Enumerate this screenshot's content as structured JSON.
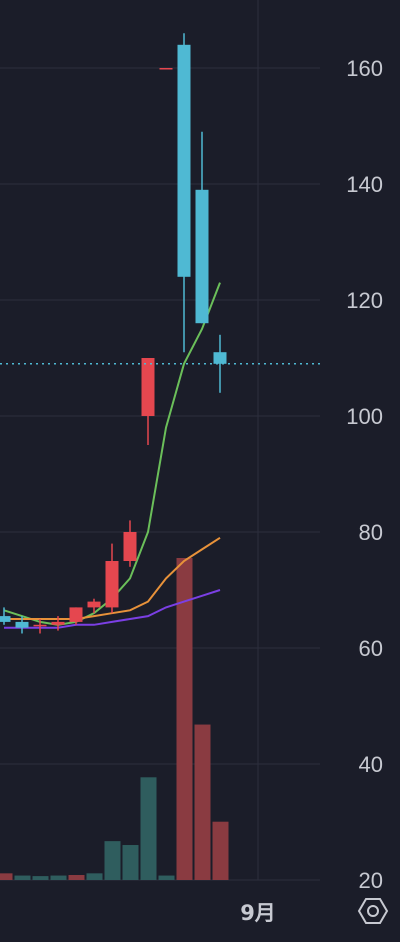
{
  "chart_data": {
    "type": "candlestick",
    "y_axis": {
      "ticks": [
        20,
        40,
        60,
        80,
        100,
        120,
        140,
        160
      ],
      "ylim": [
        20,
        171
      ],
      "side": "right",
      "grid": true
    },
    "x_axis": {
      "labels": [
        "9月"
      ]
    },
    "price_line": {
      "value": 109,
      "style": "dotted",
      "color": "#4fb9d3"
    },
    "colors": {
      "up": "#e5474f",
      "down": "#4fb9d3",
      "volume_up": "#8a3b41",
      "volume_down": "#2f5d5e",
      "ma_short": "#6bbf5a",
      "ma_mid": "#e8923a",
      "ma_long": "#7b3fe4",
      "grid": "#2c2f3d",
      "background": "#1b1d29"
    },
    "candles": [
      {
        "open": 65.5,
        "high": 67,
        "low": 64,
        "close": 64.5
      },
      {
        "open": 64.5,
        "high": 65.5,
        "low": 62.5,
        "close": 63.5
      },
      {
        "open": 64,
        "high": 65,
        "low": 62.5,
        "close": 64
      },
      {
        "open": 64,
        "high": 65.5,
        "low": 63,
        "close": 64.5
      },
      {
        "open": 64.5,
        "high": 67,
        "low": 64,
        "close": 67
      },
      {
        "open": 67,
        "high": 68.5,
        "low": 66,
        "close": 68
      },
      {
        "open": 67,
        "high": 78,
        "low": 66,
        "close": 75
      },
      {
        "open": 75,
        "high": 82,
        "low": 74,
        "close": 80
      },
      {
        "open": 100,
        "high": 110,
        "low": 95,
        "close": 110
      },
      {
        "open": 160,
        "high": 160,
        "low": 160,
        "close": 160
      },
      {
        "open": 164,
        "high": 166,
        "low": 111,
        "close": 124
      },
      {
        "open": 139,
        "high": 149,
        "low": 116,
        "close": 116
      },
      {
        "open": 111,
        "high": 114,
        "low": 104,
        "close": 109
      }
    ],
    "volume": [
      {
        "value": 1.2,
        "dir": "up"
      },
      {
        "value": 0.8,
        "dir": "down"
      },
      {
        "value": 0.7,
        "dir": "down"
      },
      {
        "value": 0.8,
        "dir": "down"
      },
      {
        "value": 0.9,
        "dir": "up"
      },
      {
        "value": 1.2,
        "dir": "down"
      },
      {
        "value": 7,
        "dir": "down"
      },
      {
        "value": 6.3,
        "dir": "down"
      },
      {
        "value": 18.5,
        "dir": "down"
      },
      {
        "value": 0.8,
        "dir": "down"
      },
      {
        "value": 58,
        "dir": "up"
      },
      {
        "value": 28,
        "dir": "up"
      },
      {
        "value": 10.5,
        "dir": "up"
      }
    ],
    "volume_scale_max": 58,
    "moving_averages": [
      {
        "key": "ma_short",
        "values": [
          66.5,
          65.5,
          64.5,
          64,
          64.5,
          66,
          68.5,
          72,
          80,
          98,
          109,
          115,
          123
        ]
      },
      {
        "key": "ma_mid",
        "values": [
          65,
          65,
          65,
          65,
          65,
          65.5,
          66,
          66.5,
          68,
          72,
          75,
          77,
          79
        ]
      },
      {
        "key": "ma_long",
        "values": [
          63.5,
          63.5,
          63.5,
          63.5,
          64,
          64,
          64.5,
          65,
          65.5,
          67,
          68,
          69,
          70
        ]
      }
    ]
  },
  "settings_icon": "gear-icon"
}
